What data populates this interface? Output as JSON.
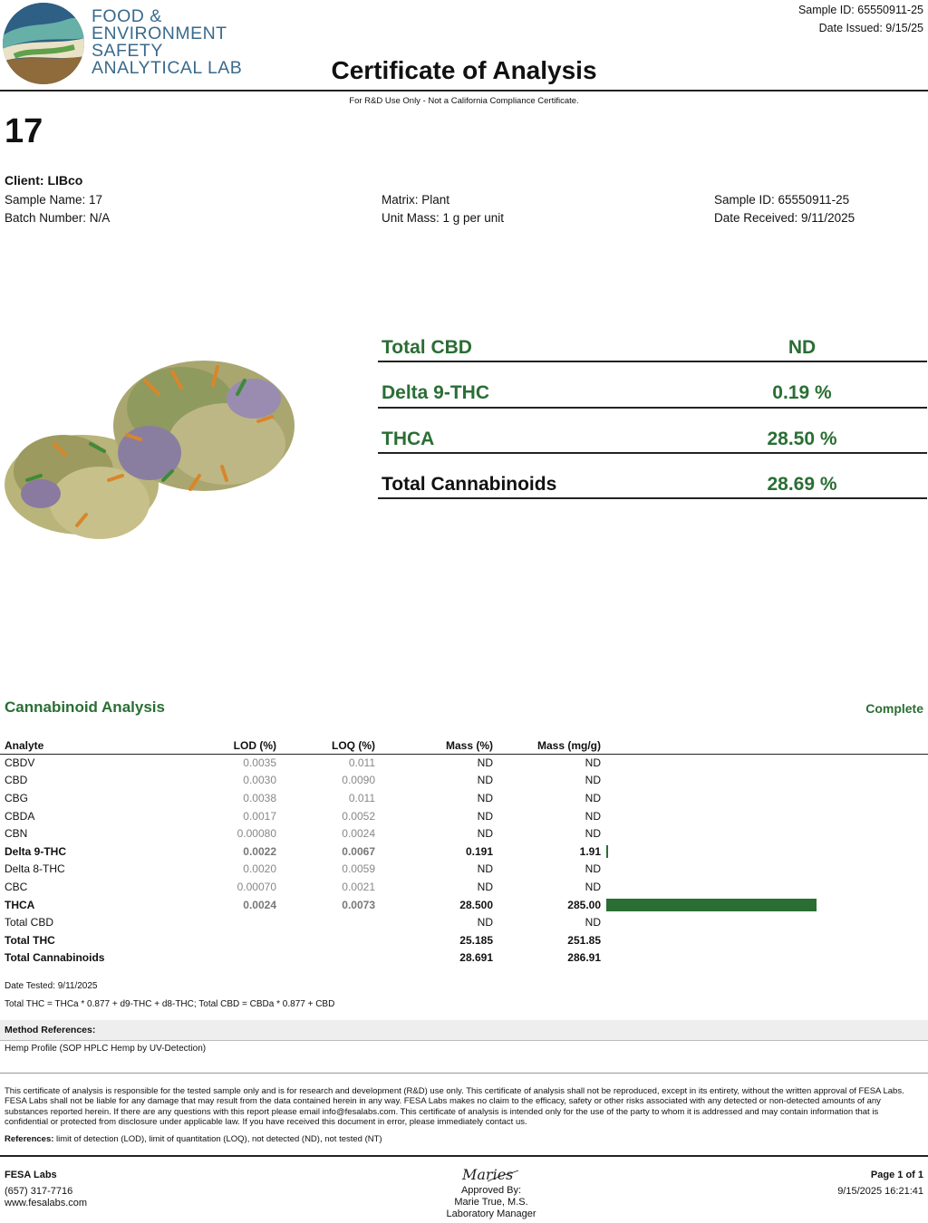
{
  "lab": {
    "name_lines": [
      "FOOD &",
      "ENVIRONMENT",
      "SAFETY",
      "ANALYTICAL LAB"
    ],
    "logo_icon": "fesa-wave-logo"
  },
  "header": {
    "sample_id": "Sample ID: 65550911-25",
    "date_issued": "Date Issued: 9/15/25",
    "title": "Certificate of Analysis",
    "rd_note": "For R&D Use Only - Not a California Compliance Certificate."
  },
  "sample": {
    "number": "17",
    "client": "Client: LIBco",
    "sample_name": "Sample Name: 17",
    "batch_number": "Batch Number: N/A",
    "matrix": "Matrix: Plant",
    "unit_mass": "Unit Mass: 1 g per unit",
    "sample_id": "Sample ID: 65550911-25",
    "date_received": "Date Received: 9/11/2025",
    "photo": "cannabis-flower-photo"
  },
  "summary": [
    {
      "label": "Total CBD",
      "value": "ND"
    },
    {
      "label": "Delta 9-THC",
      "value": "0.19 %"
    },
    {
      "label": "THCA",
      "value": "28.50 %"
    },
    {
      "label": "Total Cannabinoids",
      "value": "28.69 %"
    }
  ],
  "analysis": {
    "title": "Cannabinoid Analysis",
    "status": "Complete",
    "columns": [
      "Analyte",
      "LOD (%)",
      "LOQ (%)",
      "Mass (%)",
      "Mass (mg/g)"
    ],
    "bar_max_mg_g": 285.0,
    "rows": [
      {
        "analyte": "CBDV",
        "lod": "0.0035",
        "loq": "0.011",
        "mass_pct": "ND",
        "mass_mg": "ND",
        "bold": false,
        "mg_value": 0
      },
      {
        "analyte": "CBD",
        "lod": "0.0030",
        "loq": "0.0090",
        "mass_pct": "ND",
        "mass_mg": "ND",
        "bold": false,
        "mg_value": 0
      },
      {
        "analyte": "CBG",
        "lod": "0.0038",
        "loq": "0.011",
        "mass_pct": "ND",
        "mass_mg": "ND",
        "bold": false,
        "mg_value": 0
      },
      {
        "analyte": "CBDA",
        "lod": "0.0017",
        "loq": "0.0052",
        "mass_pct": "ND",
        "mass_mg": "ND",
        "bold": false,
        "mg_value": 0
      },
      {
        "analyte": "CBN",
        "lod": "0.00080",
        "loq": "0.0024",
        "mass_pct": "ND",
        "mass_mg": "ND",
        "bold": false,
        "mg_value": 0
      },
      {
        "analyte": "Delta 9-THC",
        "lod": "0.0022",
        "loq": "0.0067",
        "mass_pct": "0.191",
        "mass_mg": "1.91",
        "bold": true,
        "mg_value": 1.91
      },
      {
        "analyte": "Delta 8-THC",
        "lod": "0.0020",
        "loq": "0.0059",
        "mass_pct": "ND",
        "mass_mg": "ND",
        "bold": false,
        "mg_value": 0
      },
      {
        "analyte": "CBC",
        "lod": "0.00070",
        "loq": "0.0021",
        "mass_pct": "ND",
        "mass_mg": "ND",
        "bold": false,
        "mg_value": 0
      },
      {
        "analyte": "THCA",
        "lod": "0.0024",
        "loq": "0.0073",
        "mass_pct": "28.500",
        "mass_mg": "285.00",
        "bold": true,
        "mg_value": 285.0
      },
      {
        "analyte": "Total CBD",
        "lod": "",
        "loq": "",
        "mass_pct": "ND",
        "mass_mg": "ND",
        "bold": false,
        "mg_value": 0
      },
      {
        "analyte": "Total THC",
        "lod": "",
        "loq": "",
        "mass_pct": "25.185",
        "mass_mg": "251.85",
        "bold": true,
        "mg_value": 0
      },
      {
        "analyte": "Total Cannabinoids",
        "lod": "",
        "loq": "",
        "mass_pct": "28.691",
        "mass_mg": "286.91",
        "bold": true,
        "mg_value": 0
      }
    ],
    "date_tested": "Date Tested: 9/11/2025",
    "formula": "Total THC = THCa * 0.877 + d9-THC + d8-THC; Total CBD = CBDa * 0.877 + CBD"
  },
  "methods": {
    "title": "Method References:",
    "body": "Hemp Profile (SOP HPLC Hemp by UV-Detection)"
  },
  "disclaimer": "This certificate of analysis is responsible for the tested sample only and is for research and development (R&D) use only. This certificate of analysis shall not be reproduced, except in its entirety, without the written approval of FESA Labs. FESA Labs shall not be liable for any damage that may result from the data contained herein in any way. FESA Labs makes no claim to the efficacy, safety or other risks associated with any detected or non-detected amounts of any substances reported herein. If there are any questions with this report please email info@fesalabs.com. This certificate of analysis is intended only for the use of the party to whom it is addressed and may contain information that is confidential or protected from disclosure under applicable law. If you have received this document in error, please immediately contact us.",
  "references": {
    "label": "References:",
    "text": " limit of detection (LOD), limit of quantitation (LOQ), not detected (ND), not tested (NT)"
  },
  "footer": {
    "company": "FESA Labs",
    "phone": "(657) 317-7716",
    "website": "www.fesalabs.com",
    "approved_by": "Approved By:",
    "approver_name": "Marie True, M.S.",
    "approver_title": "Laboratory Manager",
    "signature": "Maries",
    "page": "Page 1 of 1",
    "printed": "9/15/2025 16:21:41"
  },
  "colors": {
    "brand_green": "#2a6e34",
    "brand_blue": "#3a6a8c"
  }
}
